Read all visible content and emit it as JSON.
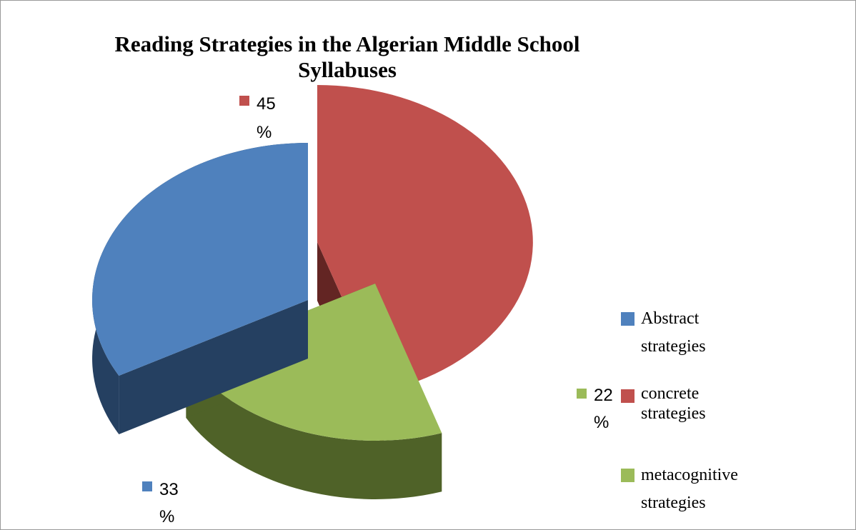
{
  "chart_data": {
    "type": "pie",
    "title_lines": [
      "Reading Strategies in the Algerian Middle School",
      "Syllabuses"
    ],
    "slices": [
      {
        "category": "concrete strategies",
        "legend_lines": [
          "concrete",
          "strategies"
        ],
        "value": 45,
        "label_number": "45",
        "label_percent": "%",
        "color": "#c0504d",
        "side_color": "#632523"
      },
      {
        "category": "metacognitive strategies",
        "legend_lines": [
          "metacognitive",
          "strategies"
        ],
        "value": 22,
        "label_number": "22",
        "label_percent": "%",
        "color": "#9bbb59",
        "side_color": "#4f6228"
      },
      {
        "category": "Abstract strategies",
        "legend_lines": [
          "Abstract",
          "strategies"
        ],
        "value": 33,
        "label_number": "33",
        "label_percent": "%",
        "color": "#4f81bd",
        "side_color": "#254061"
      }
    ],
    "legend_order": [
      2,
      0,
      1
    ],
    "legend_placement": "right",
    "style": "3d-exploded"
  }
}
